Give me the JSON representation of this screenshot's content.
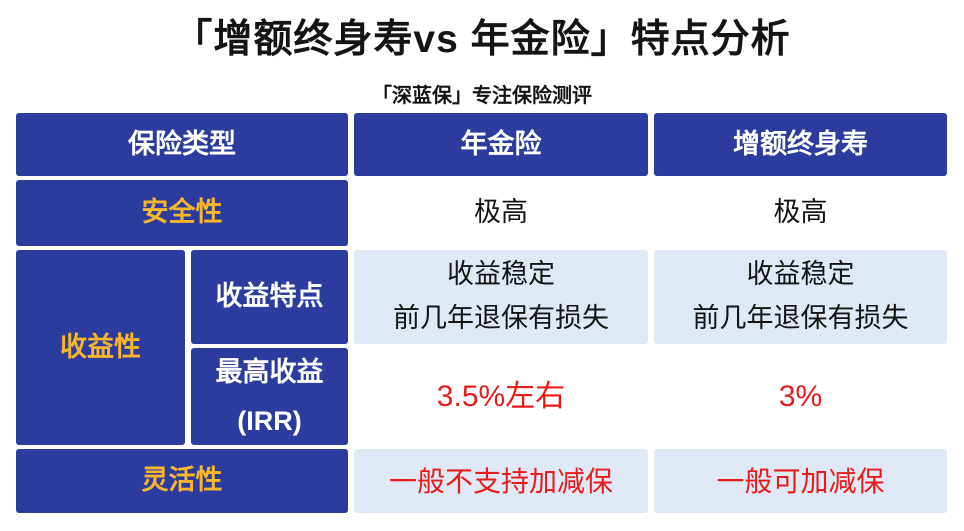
{
  "title": "「增额终身寿vs 年金险」特点分析",
  "subtitle": "「深蓝保」专注保险测评",
  "colors": {
    "blue": "#2b3c9e",
    "gold": "#f8b62b",
    "pale": "#dfe9f6",
    "red": "#e91a1a",
    "ink": "#141414"
  },
  "table": {
    "header": [
      "保险类型",
      "年金险",
      "增额终身寿"
    ],
    "safety": {
      "label": "安全性",
      "annuity": "极高",
      "increasing": "极高"
    },
    "profit": {
      "label": "收益性",
      "feature": {
        "label": "收益特点",
        "annuity": [
          "收益稳定",
          "前几年退保有损失"
        ],
        "increasing": [
          "收益稳定",
          "前几年退保有损失"
        ]
      },
      "irr": {
        "label": [
          "最高收益",
          "(IRR)"
        ],
        "annuity": "3.5%左右",
        "increasing": "3%"
      }
    },
    "flexibility": {
      "label": "灵活性",
      "annuity": "一般不支持加减保",
      "increasing": "一般可加减保"
    }
  },
  "chart_data": {
    "type": "table",
    "title": "「增额终身寿vs 年金险」特点分析",
    "subtitle": "「深蓝保」专注保险测评",
    "columns": [
      "保险类型",
      "年金险",
      "增额终身寿"
    ],
    "rows": [
      [
        "安全性",
        "极高",
        "极高"
      ],
      [
        "收益性 · 收益特点",
        "收益稳定 前几年退保有损失",
        "收益稳定 前几年退保有损失"
      ],
      [
        "收益性 · 最高收益(IRR)",
        "3.5%左右",
        "3%"
      ],
      [
        "灵活性",
        "一般不支持加减保",
        "一般可加减保"
      ]
    ]
  }
}
